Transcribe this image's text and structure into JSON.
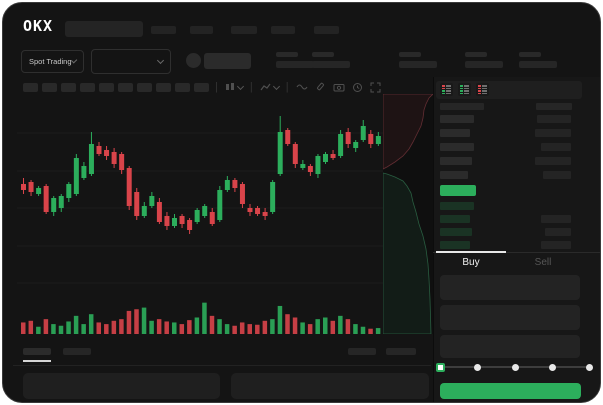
{
  "colors": {
    "green": "#2cae5c",
    "red": "#d9444a",
    "window_bg": "#141414",
    "panel_bg": "#171717",
    "grid": "#1c1c1c"
  },
  "header": {
    "logo": "OKX"
  },
  "market_selector": {
    "mode_label": "Spot Trading"
  },
  "chart_toolbar": {
    "icons": [
      "candle-style",
      "indicators",
      "wave",
      "draw",
      "camera",
      "history",
      "fullscreen"
    ]
  },
  "order_book": {
    "view_icons": [
      {
        "name": "book-combined-view-icon",
        "dots": [
          "red",
          "red",
          "green",
          "green"
        ]
      },
      {
        "name": "book-bids-view-icon",
        "dots": [
          "green",
          "green",
          "green",
          "green"
        ]
      },
      {
        "name": "book-asks-view-icon",
        "dots": [
          "red",
          "red",
          "red",
          "red"
        ]
      }
    ],
    "asks": [
      {
        "l": 34,
        "r": 34
      },
      {
        "l": 30,
        "r": 36
      },
      {
        "l": 34,
        "r": 30
      },
      {
        "l": 32,
        "r": 36
      },
      {
        "l": 28,
        "r": 28
      }
    ],
    "bids": [
      {
        "l": 34,
        "r": 0
      },
      {
        "l": 30,
        "r": 30
      },
      {
        "l": 32,
        "r": 26
      },
      {
        "l": 30,
        "r": 30
      }
    ]
  },
  "trade_panel": {
    "buy_tab": "Buy",
    "sell_tab": "Sell",
    "active_tab": "Buy",
    "slider": {
      "stops": 5,
      "position_percent": 0
    }
  },
  "chart_data": {
    "type": "candlestick",
    "title": "",
    "xlabel": "",
    "ylabel": "",
    "grid": true,
    "price_scale": "relative 0-100",
    "candles": [
      {
        "o": 56,
        "h": 59,
        "l": 51,
        "c": 53,
        "v": 35
      },
      {
        "o": 57,
        "h": 58,
        "l": 50,
        "c": 52,
        "v": 40
      },
      {
        "o": 51,
        "h": 55,
        "l": 50,
        "c": 54,
        "v": 22
      },
      {
        "o": 55,
        "h": 56,
        "l": 41,
        "c": 42,
        "v": 45
      },
      {
        "o": 42,
        "h": 50,
        "l": 40,
        "c": 49,
        "v": 30
      },
      {
        "o": 44,
        "h": 51,
        "l": 42,
        "c": 50,
        "v": 25
      },
      {
        "o": 49,
        "h": 57,
        "l": 47,
        "c": 56,
        "v": 38
      },
      {
        "o": 51,
        "h": 71,
        "l": 50,
        "c": 69,
        "v": 55
      },
      {
        "o": 59,
        "h": 67,
        "l": 58,
        "c": 65,
        "v": 30
      },
      {
        "o": 61,
        "h": 82,
        "l": 60,
        "c": 76,
        "v": 60
      },
      {
        "o": 75,
        "h": 77,
        "l": 70,
        "c": 71,
        "v": 35
      },
      {
        "o": 73,
        "h": 75,
        "l": 68,
        "c": 70,
        "v": 30
      },
      {
        "o": 72,
        "h": 74,
        "l": 64,
        "c": 66,
        "v": 40
      },
      {
        "o": 71,
        "h": 72,
        "l": 61,
        "c": 63,
        "v": 45
      },
      {
        "o": 64,
        "h": 65,
        "l": 43,
        "c": 45,
        "v": 70
      },
      {
        "o": 52,
        "h": 54,
        "l": 38,
        "c": 40,
        "v": 75
      },
      {
        "o": 40,
        "h": 47,
        "l": 39,
        "c": 45,
        "v": 80
      },
      {
        "o": 45,
        "h": 52,
        "l": 44,
        "c": 50,
        "v": 40
      },
      {
        "o": 47,
        "h": 49,
        "l": 36,
        "c": 37,
        "v": 45
      },
      {
        "o": 40,
        "h": 42,
        "l": 33,
        "c": 35,
        "v": 38
      },
      {
        "o": 35,
        "h": 41,
        "l": 34,
        "c": 39,
        "v": 35
      },
      {
        "o": 40,
        "h": 41,
        "l": 34,
        "c": 36,
        "v": 30
      },
      {
        "o": 38,
        "h": 39,
        "l": 31,
        "c": 33,
        "v": 42
      },
      {
        "o": 37,
        "h": 44,
        "l": 36,
        "c": 43,
        "v": 50
      },
      {
        "o": 40,
        "h": 46,
        "l": 39,
        "c": 45,
        "v": 95
      },
      {
        "o": 42,
        "h": 44,
        "l": 35,
        "c": 36,
        "v": 55
      },
      {
        "o": 38,
        "h": 55,
        "l": 37,
        "c": 53,
        "v": 45
      },
      {
        "o": 53,
        "h": 60,
        "l": 52,
        "c": 58,
        "v": 30
      },
      {
        "o": 58,
        "h": 59,
        "l": 52,
        "c": 54,
        "v": 25
      },
      {
        "o": 56,
        "h": 57,
        "l": 44,
        "c": 46,
        "v": 35
      },
      {
        "o": 44,
        "h": 46,
        "l": 40,
        "c": 42,
        "v": 30
      },
      {
        "o": 44,
        "h": 45,
        "l": 40,
        "c": 41,
        "v": 28
      },
      {
        "o": 42,
        "h": 44,
        "l": 38,
        "c": 40,
        "v": 40
      },
      {
        "o": 42,
        "h": 58,
        "l": 41,
        "c": 57,
        "v": 45
      },
      {
        "o": 61,
        "h": 90,
        "l": 60,
        "c": 82,
        "v": 85
      },
      {
        "o": 83,
        "h": 84,
        "l": 75,
        "c": 76,
        "v": 60
      },
      {
        "o": 76,
        "h": 77,
        "l": 64,
        "c": 66,
        "v": 50
      },
      {
        "o": 64,
        "h": 68,
        "l": 63,
        "c": 66,
        "v": 35
      },
      {
        "o": 65,
        "h": 66,
        "l": 60,
        "c": 62,
        "v": 30
      },
      {
        "o": 61,
        "h": 71,
        "l": 59,
        "c": 70,
        "v": 45
      },
      {
        "o": 67,
        "h": 72,
        "l": 66,
        "c": 71,
        "v": 50
      },
      {
        "o": 71,
        "h": 73,
        "l": 68,
        "c": 69,
        "v": 40
      },
      {
        "o": 70,
        "h": 83,
        "l": 69,
        "c": 81,
        "v": 55
      },
      {
        "o": 82,
        "h": 84,
        "l": 74,
        "c": 76,
        "v": 45
      },
      {
        "o": 74,
        "h": 78,
        "l": 72,
        "c": 77,
        "v": 30
      },
      {
        "o": 78,
        "h": 88,
        "l": 77,
        "c": 85,
        "v": 22
      },
      {
        "o": 81,
        "h": 83,
        "l": 74,
        "c": 76,
        "v": 16
      },
      {
        "o": 76,
        "h": 82,
        "l": 75,
        "c": 80,
        "v": 18
      }
    ]
  }
}
